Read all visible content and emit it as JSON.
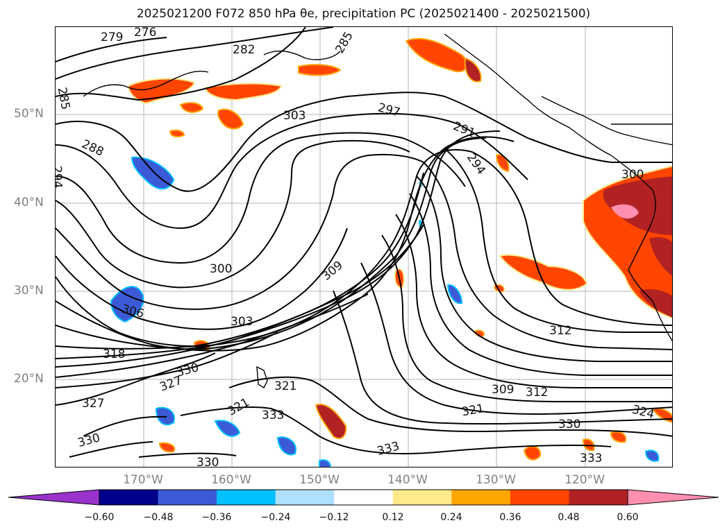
{
  "title": "2025021200 F072 850 hPa θe, precipitation PC (2025021400 - 2025021500)",
  "lat_labels": [
    "50°N",
    "40°N",
    "30°N",
    "20°N"
  ],
  "lon_labels": [
    "170°W",
    "160°W",
    "150°W",
    "140°W",
    "130°W",
    "120°W"
  ],
  "colorbar": {
    "colors": [
      "#9933cc",
      "#00008b",
      "#3b5bd6",
      "#00bfff",
      "#b0e0ff",
      "#ffffff",
      "#ffe98a",
      "#ffa500",
      "#ff4500",
      "#b22222",
      "#ff8fb0"
    ],
    "ticks": [
      "−0.60",
      "−0.48",
      "−0.36",
      "−0.24",
      "−0.12",
      "0.12",
      "0.24",
      "0.36",
      "0.48",
      "0.60"
    ]
  },
  "contour_labels": [
    "276",
    "279",
    "282",
    "285",
    "285",
    "288",
    "291",
    "294",
    "294",
    "297",
    "300",
    "300",
    "303",
    "303",
    "306",
    "309",
    "309",
    "312",
    "312",
    "318",
    "321",
    "321",
    "321",
    "324",
    "327",
    "327",
    "330",
    "330",
    "330",
    "330",
    "333",
    "333",
    "333"
  ]
}
